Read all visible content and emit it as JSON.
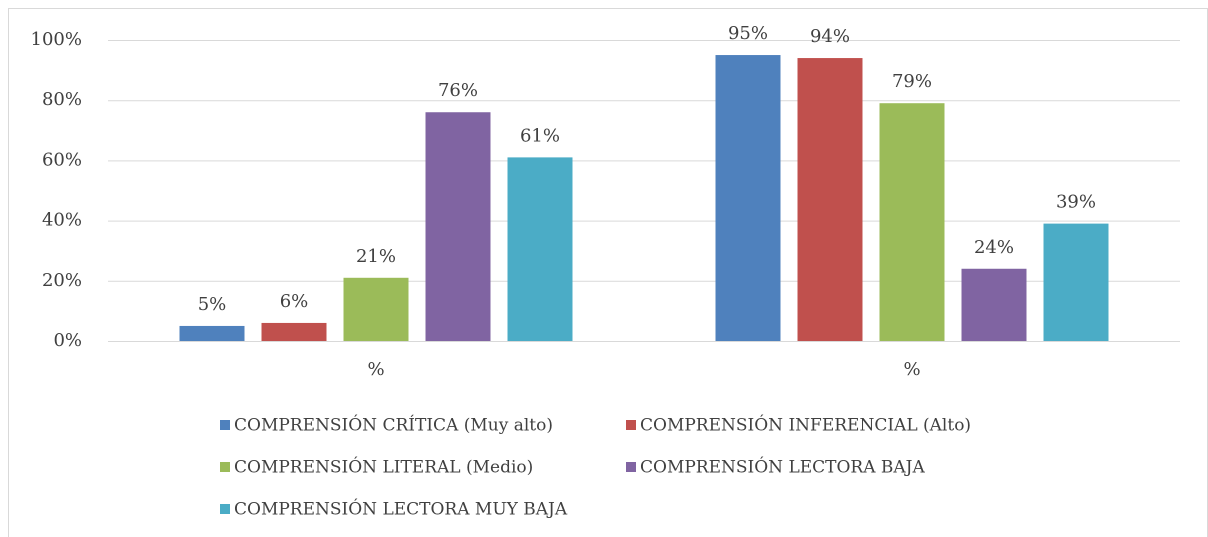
{
  "chart_data": {
    "type": "bar",
    "categories": [
      "%",
      "%"
    ],
    "series": [
      {
        "name": "COMPRENSIÓN CRÍTICA (Muy alto)",
        "color": "#4f81bd",
        "values": [
          5,
          95
        ],
        "value_labels": [
          "5%",
          "95%"
        ]
      },
      {
        "name": "COMPRENSIÓN INFERENCIAL (Alto)",
        "color": "#c0504d",
        "values": [
          6,
          94
        ],
        "value_labels": [
          "6%",
          "94%"
        ]
      },
      {
        "name": "COMPRENSIÓN LITERAL (Medio)",
        "color": "#9bbb59",
        "values": [
          21,
          79
        ],
        "value_labels": [
          "21%",
          "79%"
        ]
      },
      {
        "name": "COMPRENSIÓN LECTORA BAJA",
        "color": "#8064a2",
        "values": [
          76,
          24
        ],
        "value_labels": [
          "76%",
          "24%"
        ]
      },
      {
        "name": "COMPRENSIÓN LECTORA MUY BAJA",
        "color": "#4bacc6",
        "values": [
          61,
          39
        ],
        "value_labels": [
          "61%",
          "39%"
        ]
      }
    ],
    "ylim": [
      0,
      100
    ],
    "yticks": [
      {
        "value": 0,
        "label": "0%"
      },
      {
        "value": 20,
        "label": "20%"
      },
      {
        "value": 40,
        "label": "40%"
      },
      {
        "value": 60,
        "label": "60%"
      },
      {
        "value": 80,
        "label": "80%"
      },
      {
        "value": 100,
        "label": "100%"
      }
    ],
    "grid": true,
    "legend": "bottom"
  }
}
